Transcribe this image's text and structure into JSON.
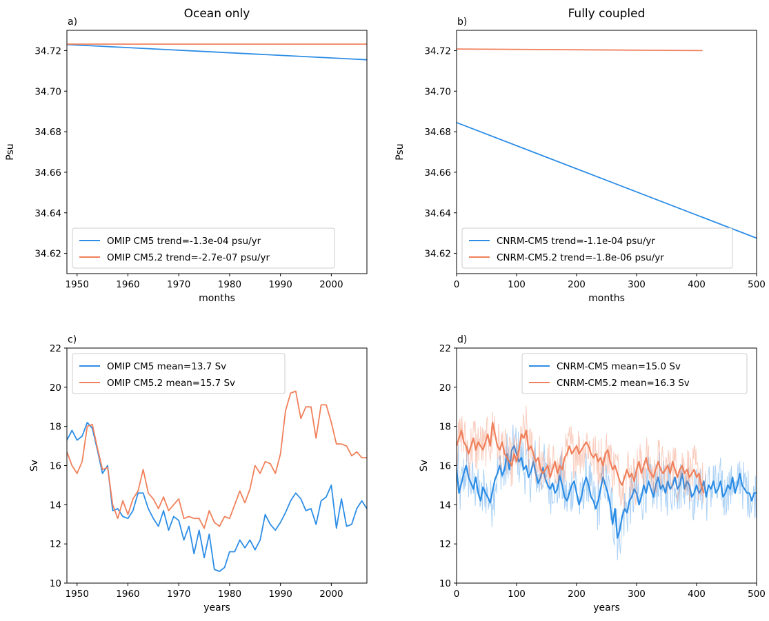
{
  "colors": {
    "blue": "#2c8de6",
    "orange": "#f0805b",
    "frame": "#000000",
    "legend_edge": "#cccccc"
  },
  "chart_data": [
    {
      "type": "line",
      "panel": "a)",
      "title": "Ocean only",
      "xlabel": "months",
      "ylabel": "Psu",
      "xlim": [
        1948,
        2007
      ],
      "ylim": [
        34.61,
        34.73
      ],
      "xticks": [
        1950,
        1960,
        1970,
        1980,
        1990,
        2000
      ],
      "yticks": [
        34.62,
        34.64,
        34.66,
        34.68,
        34.7,
        34.72
      ],
      "legend_position": "lower-left",
      "series": [
        {
          "name": "OMIP CM5 trend=-1.3e-04 psu/yr",
          "color": "blue",
          "x": [
            1948,
            2007
          ],
          "y": [
            34.723,
            34.7155
          ]
        },
        {
          "name": "OMIP CM5.2 trend=-2.7e-07 psu/yr",
          "color": "orange",
          "x": [
            1948,
            2007
          ],
          "y": [
            34.7232,
            34.7232
          ]
        }
      ]
    },
    {
      "type": "line",
      "panel": "b)",
      "title": "Fully coupled",
      "xlabel": "months",
      "ylabel": "Psu",
      "xlim": [
        0,
        500
      ],
      "ylim": [
        34.61,
        34.73
      ],
      "xticks": [
        0,
        100,
        200,
        300,
        400,
        500
      ],
      "yticks": [
        34.62,
        34.64,
        34.66,
        34.68,
        34.7,
        34.72
      ],
      "legend_position": "lower-left",
      "series": [
        {
          "name": "CNRM-CM5 trend=-1.1e-04 psu/yr",
          "color": "blue",
          "x": [
            0,
            500
          ],
          "y": [
            34.6845,
            34.6275
          ]
        },
        {
          "name": "CNRM-CM5.2 trend=-1.8e-06 psu/yr",
          "color": "orange",
          "x": [
            0,
            410
          ],
          "y": [
            34.7208,
            34.72
          ]
        }
      ]
    },
    {
      "type": "line",
      "panel": "c)",
      "title": "",
      "xlabel": "years",
      "ylabel": "Sv",
      "xlim": [
        1948,
        2007
      ],
      "ylim": [
        10,
        22
      ],
      "xticks": [
        1950,
        1960,
        1970,
        1980,
        1990,
        2000
      ],
      "yticks": [
        10,
        12,
        14,
        16,
        18,
        20,
        22
      ],
      "legend_position": "upper-left",
      "x": [
        1948,
        1949,
        1950,
        1951,
        1952,
        1953,
        1954,
        1955,
        1956,
        1957,
        1958,
        1959,
        1960,
        1961,
        1962,
        1963,
        1964,
        1965,
        1966,
        1967,
        1968,
        1969,
        1970,
        1971,
        1972,
        1973,
        1974,
        1975,
        1976,
        1977,
        1978,
        1979,
        1980,
        1981,
        1982,
        1983,
        1984,
        1985,
        1986,
        1987,
        1988,
        1989,
        1990,
        1991,
        1992,
        1993,
        1994,
        1995,
        1996,
        1997,
        1998,
        1999,
        2000,
        2001,
        2002,
        2003,
        2004,
        2005,
        2006,
        2007
      ],
      "series": [
        {
          "name": "OMIP CM5 mean=13.7 Sv",
          "color": "blue",
          "values": [
            17.3,
            17.8,
            17.3,
            17.5,
            18.2,
            17.9,
            16.8,
            15.6,
            16.0,
            13.7,
            13.8,
            13.4,
            13.3,
            13.7,
            14.6,
            14.6,
            13.8,
            13.3,
            12.9,
            13.7,
            12.7,
            13.4,
            13.2,
            12.2,
            12.9,
            11.5,
            12.7,
            11.3,
            12.5,
            10.7,
            10.6,
            10.8,
            11.6,
            11.6,
            12.2,
            11.8,
            12.2,
            11.7,
            12.2,
            13.5,
            13.0,
            12.7,
            13.1,
            13.6,
            14.2,
            14.6,
            14.3,
            13.7,
            13.8,
            13.0,
            14.2,
            14.4,
            15.0,
            12.8,
            14.3,
            12.9,
            13.0,
            13.8,
            14.2,
            13.8
          ]
        },
        {
          "name": "OMIP CM5.2 mean=15.7 Sv",
          "color": "orange",
          "values": [
            16.7,
            16.0,
            15.6,
            16.2,
            18.0,
            18.1,
            16.9,
            15.8,
            15.9,
            14.0,
            13.3,
            14.2,
            13.5,
            14.3,
            14.7,
            15.8,
            14.6,
            14.3,
            13.8,
            14.4,
            13.7,
            14.0,
            14.3,
            13.3,
            13.4,
            13.3,
            13.3,
            12.8,
            13.7,
            13.1,
            12.9,
            13.4,
            13.3,
            14.0,
            14.7,
            14.1,
            14.8,
            16.0,
            15.6,
            16.2,
            16.1,
            15.6,
            16.6,
            18.8,
            19.7,
            19.8,
            18.4,
            19.0,
            19.0,
            17.4,
            19.1,
            19.1,
            18.2,
            17.1,
            17.1,
            17.0,
            16.5,
            16.7,
            16.4,
            16.4
          ]
        }
      ]
    },
    {
      "type": "line",
      "panel": "d)",
      "title": "",
      "xlabel": "years",
      "ylabel": "Sv",
      "xlim": [
        0,
        500
      ],
      "ylim": [
        10,
        22
      ],
      "xticks": [
        0,
        100,
        200,
        300,
        400,
        500
      ],
      "yticks": [
        10,
        12,
        14,
        16,
        18,
        20,
        22
      ],
      "legend_position": "upper-right",
      "x_step": 4,
      "series": [
        {
          "name": "CNRM-CM5 mean=15.0 Sv",
          "color": "blue",
          "values": [
            15.8,
            14.6,
            15.1,
            15.6,
            16.0,
            15.4,
            15.1,
            14.8,
            15.4,
            14.6,
            14.2,
            14.9,
            14.6,
            14.4,
            14.1,
            14.7,
            15.3,
            15.6,
            16.0,
            15.5,
            15.8,
            16.6,
            15.8,
            16.8,
            17.0,
            16.6,
            16.2,
            16.4,
            15.8,
            16.0,
            15.4,
            15.7,
            16.2,
            15.6,
            15.1,
            15.4,
            15.9,
            15.3,
            15.0,
            14.8,
            15.1,
            14.6,
            14.8,
            15.5,
            15.0,
            14.4,
            14.2,
            14.6,
            15.0,
            15.2,
            14.6,
            14.0,
            14.4,
            15.0,
            15.4,
            15.0,
            14.4,
            14.2,
            13.8,
            14.2,
            14.8,
            15.4,
            15.0,
            14.6,
            14.0,
            13.0,
            13.8,
            12.3,
            12.7,
            13.4,
            13.8,
            13.6,
            14.2,
            14.4,
            14.8,
            14.6,
            14.0,
            14.4,
            15.0,
            14.6,
            15.2,
            14.8,
            14.4,
            15.0,
            15.4,
            14.8,
            15.0,
            14.6,
            15.2,
            14.8,
            15.0,
            15.4,
            14.8,
            15.0,
            15.6,
            14.8,
            15.2,
            15.0,
            14.4,
            14.6,
            15.0,
            14.6,
            14.8,
            15.2,
            14.4,
            15.0,
            14.8,
            15.2,
            14.6,
            14.8,
            15.2,
            14.4,
            14.6,
            15.0,
            14.8,
            15.4,
            14.6,
            15.0,
            15.6,
            15.0,
            14.8,
            14.6,
            14.6,
            14.2,
            14.6,
            14.6
          ]
        },
        {
          "name": "CNRM-CM5.2 mean=16.3 Sv",
          "color": "orange",
          "values": [
            17.0,
            17.4,
            17.8,
            17.2,
            17.0,
            16.6,
            17.0,
            17.4,
            16.8,
            17.2,
            17.0,
            16.8,
            17.2,
            17.6,
            17.0,
            18.2,
            17.6,
            17.0,
            16.8,
            17.2,
            16.6,
            16.4,
            16.2,
            16.0,
            16.6,
            16.2,
            16.8,
            17.6,
            17.4,
            17.8,
            16.8,
            17.0,
            16.6,
            16.2,
            16.4,
            15.8,
            15.6,
            15.8,
            16.0,
            15.4,
            15.8,
            16.2,
            15.6,
            16.0,
            15.8,
            16.4,
            16.6,
            17.0,
            16.6,
            16.8,
            17.0,
            16.6,
            16.8,
            17.0,
            17.2,
            17.0,
            16.6,
            16.4,
            16.6,
            16.2,
            16.4,
            16.0,
            16.6,
            16.8,
            16.2,
            15.8,
            16.0,
            15.6,
            15.2,
            15.0,
            15.4,
            15.8,
            15.4,
            15.6,
            15.2,
            15.8,
            16.2,
            15.6,
            16.0,
            16.4,
            15.8,
            15.6,
            15.4,
            15.8,
            16.2,
            15.8,
            15.6,
            15.8,
            16.0,
            15.6,
            16.2,
            15.8,
            15.4,
            15.8,
            16.0,
            15.6,
            15.8,
            15.4,
            15.6,
            15.8,
            15.4,
            15.6,
            15.0,
            14.6
          ]
        }
      ]
    }
  ]
}
